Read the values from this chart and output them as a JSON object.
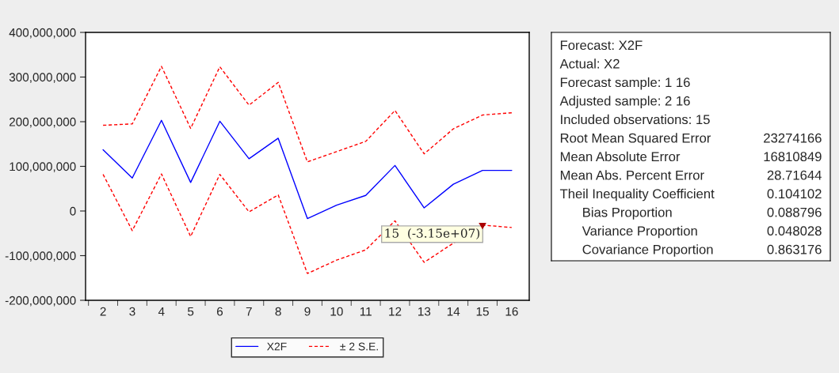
{
  "chart_data": [
    {
      "type": "line",
      "categories": [
        "2",
        "3",
        "4",
        "5",
        "6",
        "7",
        "8",
        "9",
        "10",
        "11",
        "12",
        "13",
        "14",
        "15",
        "16"
      ],
      "series": [
        {
          "name": "X2F",
          "color": "#0000ff",
          "line_style": "solid",
          "values": [
            137000000,
            74000000,
            203000000,
            64000000,
            201000000,
            117000000,
            163000000,
            -17000000,
            13000000,
            35000000,
            102000000,
            7000000,
            60000000,
            91000000,
            91000000
          ]
        },
        {
          "name": "± 2 S.E.",
          "color": "#ff0000",
          "line_style": "dashed",
          "values": [
            192000000,
            195000000,
            324000000,
            185000000,
            323000000,
            237000000,
            288000000,
            110000000,
            133000000,
            156000000,
            225000000,
            128000000,
            184000000,
            215000000,
            220000000
          ]
        },
        {
          "color": "#ff0000",
          "line_style": "dashed",
          "values": [
            82000000,
            -44000000,
            83000000,
            -57000000,
            82000000,
            -2000000,
            36000000,
            -140000000,
            -110000000,
            -87000000,
            -22000000,
            -115000000,
            -72000000,
            -31500000,
            -37000000
          ]
        }
      ],
      "ylim": [
        -200000000,
        400000000
      ],
      "yticks": [
        {
          "value": -200000000,
          "label": "-200,000,000"
        },
        {
          "value": -100000000,
          "label": "-100,000,000"
        },
        {
          "value": 0,
          "label": "0"
        },
        {
          "value": 100000000,
          "label": "100,000,000"
        },
        {
          "value": 200000000,
          "label": "200,000,000"
        },
        {
          "value": 300000000,
          "label": "300,000,000"
        },
        {
          "value": 400000000,
          "label": "400,000,000"
        }
      ],
      "annotations": [
        {
          "text": "15  (-3.15e+07)",
          "x": "15",
          "y": -31500000
        }
      ],
      "legend": "bottom",
      "grid": false
    },
    {
      "type": "other",
      "annotations": [
        "Forecast: X2F",
        "Actual: X2",
        "Forecast sample: 1 16",
        "Adjusted sample: 2 16",
        "Included observations: 15",
        "Root Mean Squared Error 23274166",
        "Mean Absolute Error 16810849",
        "Mean Abs. Percent Error 28.71644",
        "Theil Inequality Coefficient 0.104102",
        "Bias Proportion 0.088796",
        "Variance Proportion 0.048028",
        "Covariance Proportion 0.863176"
      ]
    }
  ]
}
